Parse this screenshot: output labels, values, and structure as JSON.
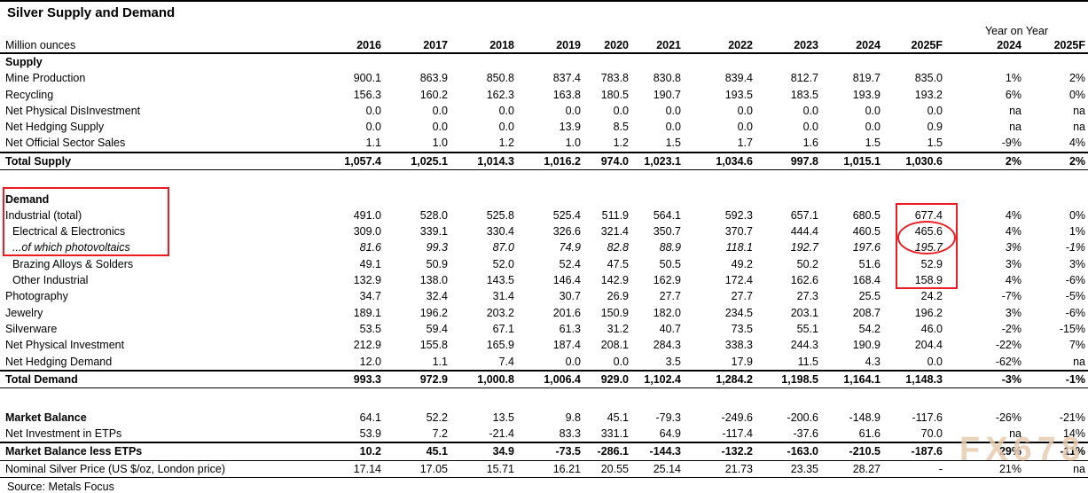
{
  "title": "Silver Supply and Demand",
  "header": {
    "unit_label": "Million ounces",
    "yoy_label": "Year on Year",
    "years": [
      "2016",
      "2017",
      "2018",
      "2019",
      "2020",
      "2021",
      "2022",
      "2023",
      "2024",
      "2025F"
    ],
    "yoy_columns": [
      "2024",
      "2025F"
    ]
  },
  "table": {
    "rows": [
      {
        "name": "row-supply-section",
        "label": "Supply",
        "cls": "section",
        "values": []
      },
      {
        "name": "row-mine-production",
        "label": "Mine Production",
        "cls": "",
        "values": [
          "900.1",
          "863.9",
          "850.8",
          "837.4",
          "783.8",
          "830.8",
          "839.4",
          "812.7",
          "819.7",
          "835.0",
          "1%",
          "2%"
        ]
      },
      {
        "name": "row-recycling",
        "label": "Recycling",
        "cls": "",
        "values": [
          "156.3",
          "160.2",
          "162.3",
          "163.8",
          "180.5",
          "190.7",
          "193.5",
          "183.5",
          "193.9",
          "193.2",
          "6%",
          "0%"
        ]
      },
      {
        "name": "row-net-physical-disinvestment",
        "label": "Net Physical DisInvestment",
        "cls": "",
        "values": [
          "0.0",
          "0.0",
          "0.0",
          "0.0",
          "0.0",
          "0.0",
          "0.0",
          "0.0",
          "0.0",
          "0.0",
          "na",
          "na"
        ]
      },
      {
        "name": "row-net-hedging-supply",
        "label": "Net Hedging Supply",
        "cls": "",
        "values": [
          "0.0",
          "0.0",
          "0.0",
          "13.9",
          "8.5",
          "0.0",
          "0.0",
          "0.0",
          "0.0",
          "0.9",
          "na",
          "na"
        ]
      },
      {
        "name": "row-net-official-sector-sales",
        "label": "Net Official Sector Sales",
        "cls": "",
        "values": [
          "1.1",
          "1.0",
          "1.2",
          "1.0",
          "1.2",
          "1.5",
          "1.7",
          "1.6",
          "1.5",
          "1.5",
          "-9%",
          "4%"
        ]
      },
      {
        "name": "row-total-supply",
        "label": "Total Supply",
        "cls": "total",
        "values": [
          "1,057.4",
          "1,025.1",
          "1,014.3",
          "1,016.2",
          "974.0",
          "1,023.1",
          "1,034.6",
          "997.8",
          "1,015.1",
          "1,030.6",
          "2%",
          "2%"
        ]
      },
      {
        "name": "row-gap-1",
        "label": "",
        "cls": "gap",
        "values": []
      },
      {
        "name": "row-demand-section",
        "label": "Demand",
        "cls": "section",
        "values": []
      },
      {
        "name": "row-industrial-total",
        "label": "Industrial (total)",
        "cls": "",
        "values": [
          "491.0",
          "528.0",
          "525.8",
          "525.4",
          "511.9",
          "564.1",
          "592.3",
          "657.1",
          "680.5",
          "677.4",
          "4%",
          "0%"
        ]
      },
      {
        "name": "row-electrical-electronics",
        "label": "Electrical & Electronics",
        "cls": "ind",
        "values": [
          "309.0",
          "339.1",
          "330.4",
          "326.6",
          "321.4",
          "350.7",
          "370.7",
          "444.4",
          "460.5",
          "465.6",
          "4%",
          "1%"
        ]
      },
      {
        "name": "row-of-which-photovoltaics",
        "label": "...of which photovoltaics",
        "cls": "ind italic",
        "values": [
          "81.6",
          "99.3",
          "87.0",
          "74.9",
          "82.8",
          "88.9",
          "118.1",
          "192.7",
          "197.6",
          "195.7",
          "3%",
          "-1%"
        ]
      },
      {
        "name": "row-brazing-alloys-solders",
        "label": "Brazing Alloys & Solders",
        "cls": "ind",
        "values": [
          "49.1",
          "50.9",
          "52.0",
          "52.4",
          "47.5",
          "50.5",
          "49.2",
          "50.2",
          "51.6",
          "52.9",
          "3%",
          "3%"
        ]
      },
      {
        "name": "row-other-industrial",
        "label": "Other Industrial",
        "cls": "ind",
        "values": [
          "132.9",
          "138.0",
          "143.5",
          "146.4",
          "142.9",
          "162.9",
          "172.4",
          "162.6",
          "168.4",
          "158.9",
          "4%",
          "-6%"
        ]
      },
      {
        "name": "row-photography",
        "label": "Photography",
        "cls": "",
        "values": [
          "34.7",
          "32.4",
          "31.4",
          "30.7",
          "26.9",
          "27.7",
          "27.7",
          "27.3",
          "25.5",
          "24.2",
          "-7%",
          "-5%"
        ]
      },
      {
        "name": "row-jewelry",
        "label": "Jewelry",
        "cls": "",
        "values": [
          "189.1",
          "196.2",
          "203.2",
          "201.6",
          "150.9",
          "182.0",
          "234.5",
          "203.1",
          "208.7",
          "196.2",
          "3%",
          "-6%"
        ]
      },
      {
        "name": "row-silverware",
        "label": "Silverware",
        "cls": "",
        "values": [
          "53.5",
          "59.4",
          "67.1",
          "61.3",
          "31.2",
          "40.7",
          "73.5",
          "55.1",
          "54.2",
          "46.0",
          "-2%",
          "-15%"
        ]
      },
      {
        "name": "row-net-physical-investment",
        "label": "Net Physical Investment",
        "cls": "",
        "values": [
          "212.9",
          "155.8",
          "165.9",
          "187.4",
          "208.1",
          "284.3",
          "338.3",
          "244.3",
          "190.9",
          "204.4",
          "-22%",
          "7%"
        ]
      },
      {
        "name": "row-net-hedging-demand",
        "label": "Net Hedging Demand",
        "cls": "",
        "values": [
          "12.0",
          "1.1",
          "7.4",
          "0.0",
          "0.0",
          "3.5",
          "17.9",
          "11.5",
          "4.3",
          "0.0",
          "-62%",
          "na"
        ]
      },
      {
        "name": "row-total-demand",
        "label": "Total Demand",
        "cls": "total",
        "values": [
          "993.3",
          "972.9",
          "1,000.8",
          "1,006.4",
          "929.0",
          "1,102.4",
          "1,284.2",
          "1,198.5",
          "1,164.1",
          "1,148.3",
          "-3%",
          "-1%"
        ]
      },
      {
        "name": "row-gap-2",
        "label": "",
        "cls": "gap",
        "values": []
      },
      {
        "name": "row-market-balance",
        "label": "Market Balance",
        "cls": "blabel",
        "values": [
          "64.1",
          "52.2",
          "13.5",
          "9.8",
          "45.1",
          "-79.3",
          "-249.6",
          "-200.6",
          "-148.9",
          "-117.6",
          "-26%",
          "-21%"
        ]
      },
      {
        "name": "row-net-investment-etps",
        "label": "Net Investment in ETPs",
        "cls": "",
        "values": [
          "53.9",
          "7.2",
          "-21.4",
          "83.3",
          "331.1",
          "64.9",
          "-117.4",
          "-37.6",
          "61.6",
          "70.0",
          "na",
          "14%"
        ]
      },
      {
        "name": "row-market-balance-less-etps",
        "label": "Market Balance less ETPs",
        "cls": "total",
        "values": [
          "10.2",
          "45.1",
          "34.9",
          "-73.5",
          "-286.1",
          "-144.3",
          "-132.2",
          "-163.0",
          "-210.5",
          "-187.6",
          "29%",
          "-11%"
        ]
      },
      {
        "name": "row-nominal-silver-price",
        "label": "Nominal Silver Price (US $/oz, London price)",
        "cls": "thinline",
        "values": [
          "17.14",
          "17.05",
          "15.71",
          "16.21",
          "20.55",
          "25.14",
          "21.73",
          "23.35",
          "28.27",
          "-",
          "21%",
          "na"
        ]
      }
    ]
  },
  "source": "Source: Metals Focus",
  "watermark": {
    "text": "FX678",
    "color": "#e8cbb0"
  },
  "annotations": {
    "color": "#ed1c24",
    "items": [
      "demand-labels-box",
      "forecast-column-box",
      "photovoltaics-ellipse"
    ]
  }
}
